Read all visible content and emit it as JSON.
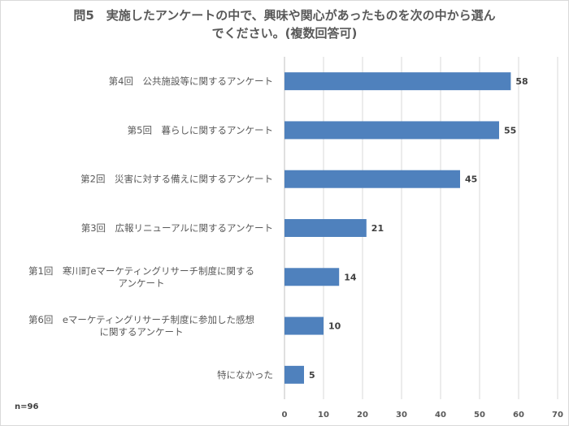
{
  "chart_data": {
    "type": "bar",
    "orientation": "horizontal",
    "title_lines": [
      "問5　実施したアンケートの中で、興味や関心があったものを次の中から選ん",
      "でください。(複数回答可)"
    ],
    "categories": [
      [
        "第4回　公共施設等に関するアンケート"
      ],
      [
        "第5回　暮らしに関するアンケート"
      ],
      [
        "第2回　災害に対する備えに関するアンケート"
      ],
      [
        "第3回　広報リニューアルに関するアンケート"
      ],
      [
        "第1回　寒川町eマーケティングリサーチ制度に関する",
        "アンケート"
      ],
      [
        "第6回　eマーケティングリサーチ制度に参加した感想",
        "に関するアンケート"
      ],
      [
        "特になかった"
      ]
    ],
    "values": [
      58,
      55,
      45,
      21,
      14,
      10,
      5
    ],
    "xlim": [
      0,
      70
    ],
    "xticks": [
      0,
      10,
      20,
      30,
      40,
      50,
      60,
      70
    ],
    "grid": true,
    "bar_color": "#4f81bd",
    "note": "n=96"
  }
}
